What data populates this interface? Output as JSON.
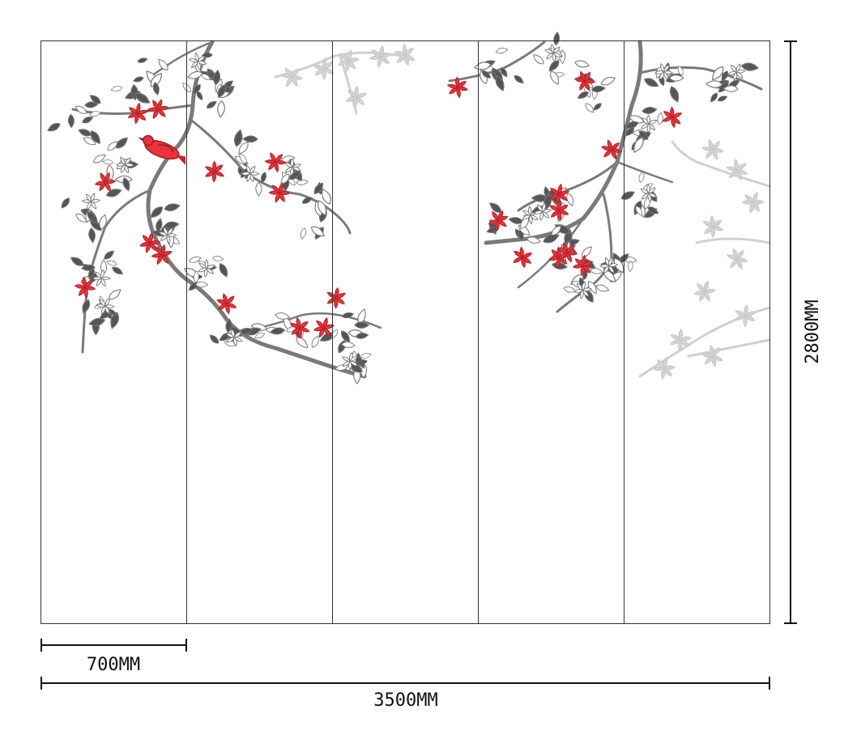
{
  "drawing": {
    "panel_count": 5,
    "panel_width_label": "700MM",
    "total_width_label": "3500MM",
    "height_label": "2800MM"
  },
  "artwork": {
    "subject": "magnolia branches with bird",
    "colors": {
      "accent_red": "#e8333a",
      "branch_grey": "#777777",
      "leaf_dark": "#555555",
      "ghost_grey": "#d4d4d4",
      "frame_line": "#333333"
    }
  }
}
